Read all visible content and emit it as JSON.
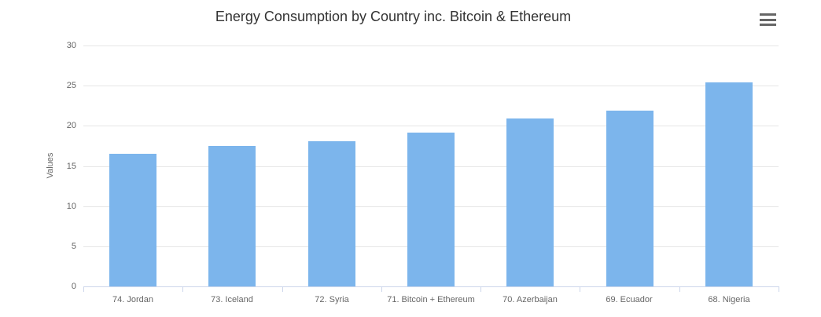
{
  "chart": {
    "context_button": {
      "icon": "hamburger-menu-icon",
      "bar_color": "#666666"
    },
    "colors": {
      "background": "#ffffff",
      "bar_fill": "#7cb5ec",
      "gridline": "#e6e6e6",
      "axis_line": "#ccd6eb",
      "axis_label": "#666666",
      "title_text": "#333333"
    }
  },
  "chart_data": {
    "type": "bar",
    "title": "Energy Consumption by Country inc. Bitcoin & Ethereum",
    "xlabel": "",
    "ylabel": "Values",
    "categories": [
      "74. Jordan",
      "73. Iceland",
      "72. Syria",
      "71. Bitcoin + Ethereum",
      "70. Azerbaijan",
      "69. Ecuador",
      "68. Nigeria"
    ],
    "values": [
      16.5,
      17.5,
      18.1,
      19.2,
      20.9,
      21.9,
      25.4
    ],
    "ylim": [
      0,
      30
    ],
    "yticks": [
      0,
      5,
      10,
      15,
      20,
      25,
      30
    ],
    "grid": true,
    "legend": "none"
  }
}
